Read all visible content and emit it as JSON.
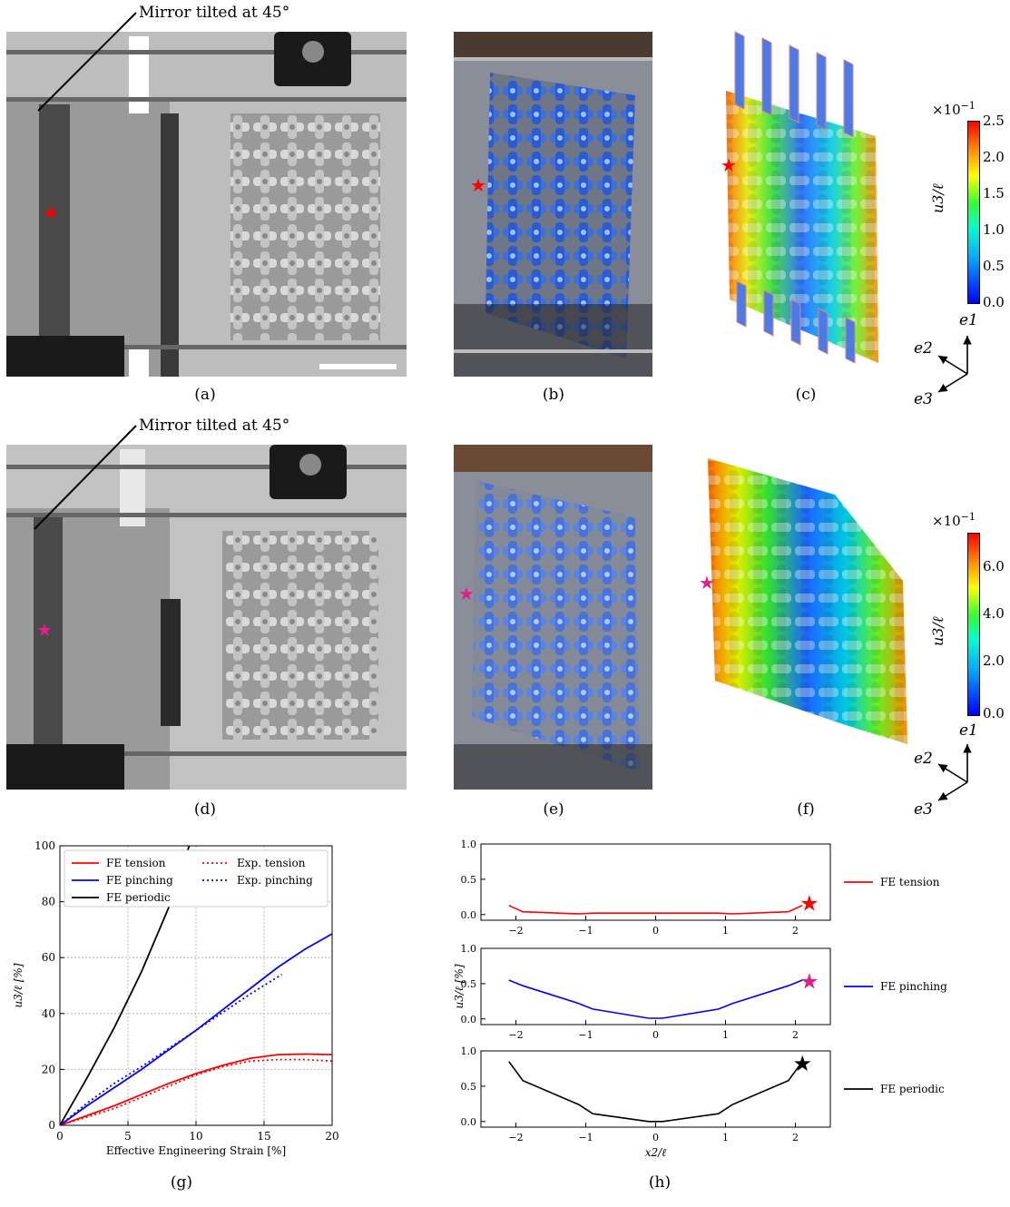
{
  "panels": {
    "a": {
      "label": "(a)",
      "annotation": "Mirror tilted at 45°"
    },
    "b": {
      "label": "(b)"
    },
    "c": {
      "label": "(c)",
      "colorbar": {
        "exponent": "×10",
        "exponent_sup": "−1",
        "ylabel": "u3/ℓ",
        "ticks": [
          "2.5",
          "2.0",
          "1.5",
          "1.0",
          "0.5",
          "0.0"
        ]
      }
    },
    "d": {
      "label": "(d)",
      "annotation": "Mirror tilted at 45°"
    },
    "e": {
      "label": "(e)"
    },
    "f": {
      "label": "(f)",
      "colorbar": {
        "exponent": "×10",
        "exponent_sup": "−1",
        "ylabel": "u3/ℓ",
        "ticks": [
          "6.0",
          "4.0",
          "2.0",
          "0.0"
        ]
      }
    },
    "g": {
      "label": "(g)"
    },
    "h": {
      "label": "(h)"
    }
  },
  "axes_triad": {
    "e1": "e1",
    "e2": "e2",
    "e3": "e3"
  },
  "colors": {
    "red": "#ff0000",
    "blue": "#0000ff",
    "black": "#000000",
    "magenta": "#e0208a"
  },
  "chart_data": [
    {
      "panel": "g",
      "type": "line",
      "xlabel": "Effective Engineering Strain [%]",
      "ylabel": "u3/ℓ [%]",
      "xlim": [
        0,
        20
      ],
      "ylim": [
        0,
        100
      ],
      "xticks": [
        "0",
        "5",
        "10",
        "15",
        "20"
      ],
      "yticks": [
        "0",
        "20",
        "40",
        "60",
        "80",
        "100"
      ],
      "grid": true,
      "legend": "top-left",
      "series": [
        {
          "name": "FE tension",
          "color": "#ff0000",
          "style": "solid",
          "x": [
            0,
            2,
            4,
            6,
            8,
            10,
            12,
            14,
            16,
            18,
            20
          ],
          "y": [
            0,
            3.5,
            7,
            11,
            15,
            18.5,
            21.5,
            24,
            25.3,
            25.5,
            25.3
          ]
        },
        {
          "name": "FE pinching",
          "color": "#0000ff",
          "style": "solid",
          "x": [
            0,
            2,
            4,
            6,
            8,
            10,
            12,
            14,
            16,
            18,
            20
          ],
          "y": [
            0,
            7,
            13.5,
            20,
            27,
            34,
            41.5,
            49,
            56.5,
            63,
            68.5
          ]
        },
        {
          "name": "FE periodic",
          "color": "#000000",
          "style": "solid",
          "x": [
            0,
            2,
            4,
            6,
            8,
            9.5
          ],
          "y": [
            0,
            17,
            35,
            55,
            78,
            100
          ]
        },
        {
          "name": "Exp. tension",
          "color": "#ff0000",
          "style": "dotted",
          "x": [
            0,
            2,
            4,
            6,
            8,
            10,
            12,
            14,
            16,
            18,
            20
          ],
          "y": [
            0,
            3,
            6,
            10,
            14,
            18,
            21,
            23,
            23.5,
            23.5,
            23
          ]
        },
        {
          "name": "Exp. pinching",
          "color": "#0000ff",
          "style": "dotted",
          "x": [
            0,
            2,
            4,
            6,
            8,
            10,
            12,
            14,
            16.3
          ],
          "y": [
            0,
            8,
            15,
            21,
            27.5,
            34,
            40.5,
            47,
            54
          ]
        }
      ]
    },
    {
      "panel": "h",
      "type": "line",
      "xlabel": "x2/ℓ",
      "ylabel": "u3/ℓ [%]",
      "xticks": [
        "−2",
        "−1",
        "0",
        "1",
        "2"
      ],
      "yticks": [
        "0.0",
        "0.5",
        "1.0"
      ],
      "xlim": [
        -2.5,
        2.5
      ],
      "ylim": [
        -0.08,
        1.0
      ],
      "subplots": [
        {
          "name": "FE tension",
          "color": "#ff0000",
          "x": [
            -2.1,
            -1.9,
            -1.1,
            -0.9,
            0.9,
            1.1,
            1.9,
            2.1
          ],
          "y": [
            0.13,
            0.04,
            0.01,
            0.02,
            0.02,
            0.01,
            0.04,
            0.13
          ],
          "marker": {
            "x": 2.2,
            "y": 0.16,
            "color": "#ff0000"
          }
        },
        {
          "name": "FE pinching",
          "color": "#0000ff",
          "x": [
            -2.1,
            -1.9,
            -1.1,
            -0.9,
            -0.1,
            0.1,
            0.9,
            1.1,
            1.9,
            2.1
          ],
          "y": [
            0.55,
            0.47,
            0.22,
            0.14,
            0.01,
            0.01,
            0.14,
            0.22,
            0.47,
            0.55
          ],
          "marker": {
            "x": 2.2,
            "y": 0.53,
            "color": "#e0208a"
          }
        },
        {
          "name": "FE periodic",
          "color": "#000000",
          "x": [
            -2.1,
            -1.9,
            -1.1,
            -0.9,
            -0.1,
            0.1,
            0.9,
            1.1,
            1.9,
            2.1
          ],
          "y": [
            0.85,
            0.58,
            0.24,
            0.11,
            0.0,
            0.0,
            0.11,
            0.24,
            0.58,
            0.85
          ],
          "marker": {
            "x": 2.1,
            "y": 0.82,
            "color": "#000000"
          }
        }
      ]
    }
  ]
}
